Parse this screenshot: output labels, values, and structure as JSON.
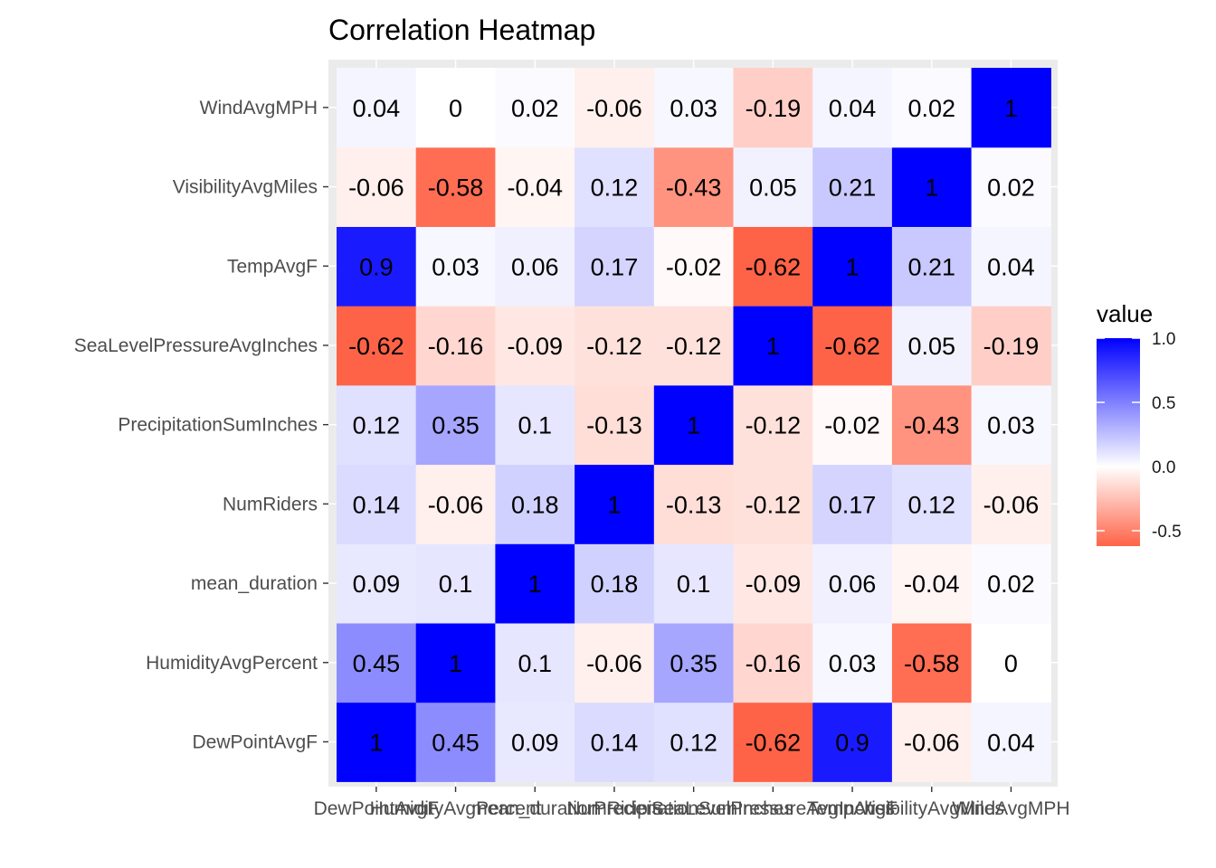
{
  "chart_data": {
    "type": "heatmap",
    "title": "Correlation Heatmap",
    "x_categories": [
      "DewPointAvgF",
      "HumidityAvgPercent",
      "mean_duration",
      "NumRiders",
      "PrecipitationSumInches",
      "SeaLevelPressureAvgInches",
      "TempAvgF",
      "VisibilityAvgMiles",
      "WindAvgMPH"
    ],
    "y_categories": [
      "DewPointAvgF",
      "HumidityAvgPercent",
      "mean_duration",
      "NumRiders",
      "PrecipitationSumInches",
      "SeaLevelPressureAvgInches",
      "TempAvgF",
      "VisibilityAvgMiles",
      "WindAvgMPH"
    ],
    "values": [
      [
        1,
        0.45,
        0.09,
        0.14,
        0.12,
        -0.62,
        0.9,
        -0.06,
        0.04
      ],
      [
        0.45,
        1,
        0.1,
        -0.06,
        0.35,
        -0.16,
        0.03,
        -0.58,
        0
      ],
      [
        0.09,
        0.1,
        1,
        0.18,
        0.1,
        -0.09,
        0.06,
        -0.04,
        0.02
      ],
      [
        0.14,
        -0.06,
        0.18,
        1,
        -0.13,
        -0.12,
        0.17,
        0.12,
        -0.06
      ],
      [
        0.12,
        0.35,
        0.1,
        -0.13,
        1,
        -0.12,
        -0.02,
        -0.43,
        0.03
      ],
      [
        -0.62,
        -0.16,
        -0.09,
        -0.12,
        -0.12,
        1,
        -0.62,
        0.05,
        -0.19
      ],
      [
        0.9,
        0.03,
        0.06,
        0.17,
        -0.02,
        -0.62,
        1,
        0.21,
        0.04
      ],
      [
        -0.06,
        -0.58,
        -0.04,
        0.12,
        -0.43,
        0.05,
        0.21,
        1,
        0.02
      ],
      [
        0.04,
        0,
        0.02,
        -0.06,
        0.03,
        -0.19,
        0.04,
        0.02,
        1
      ]
    ],
    "legend": {
      "title": "value",
      "ticks": [
        "1.0",
        "0.5",
        "0.0",
        "-0.5"
      ],
      "tick_values": [
        1.0,
        0.5,
        0.0,
        -0.5
      ],
      "range": [
        -0.62,
        1.0
      ],
      "placement": "right"
    },
    "colors": {
      "low": "#ff6347",
      "mid": "#ffffff",
      "high": "#0000ff",
      "panel_background": "#ebebeb"
    },
    "xlabel": "",
    "ylabel": "",
    "grid": true
  }
}
